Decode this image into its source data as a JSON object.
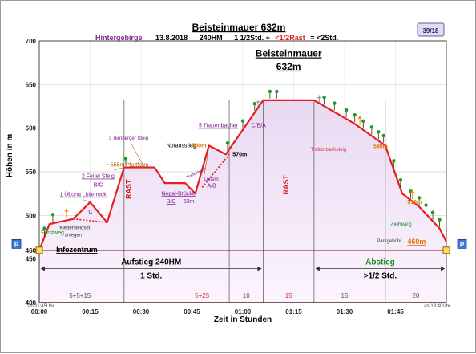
{
  "chart_data": {
    "type": "area",
    "title": "Beisteinmauer 632m",
    "subtitle": {
      "region": "Hintergebirge",
      "date": "13.8.2018",
      "elevation_gain": "240HM",
      "time_prefix": "1 1/2Std. +",
      "time_rest": "<1/2Rast",
      "time_total": "= <2Std."
    },
    "page_badge": "39/18",
    "xlabel": "Zeit in Stunden",
    "ylabel": "Höhen in m",
    "ylim": [
      400,
      700
    ],
    "xlim": [
      0,
      120
    ],
    "yticks": [
      400,
      450,
      500,
      550,
      600,
      650,
      700
    ],
    "yticks_extra": [
      460
    ],
    "xticks": [
      {
        "x": 0,
        "label": "00:00"
      },
      {
        "x": 15,
        "label": "00:15"
      },
      {
        "x": 30,
        "label": "00:30"
      },
      {
        "x": 45,
        "label": "00:45"
      },
      {
        "x": 60,
        "label": "01:00"
      },
      {
        "x": 75,
        "label": "01:15"
      },
      {
        "x": 90,
        "label": "01:30"
      },
      {
        "x": 105,
        "label": "01:45"
      }
    ],
    "start_time_label": "ab 11:45Uhr",
    "end_time_label": "an 13:40Uhr",
    "series": [
      {
        "color": "#e32020",
        "points": [
          [
            0,
            460
          ],
          [
            3,
            490
          ],
          [
            10,
            496
          ],
          [
            15,
            515
          ],
          [
            20,
            492
          ],
          [
            25,
            555
          ],
          [
            34,
            555
          ],
          [
            37,
            537
          ],
          [
            43,
            537
          ],
          [
            46,
            525
          ],
          [
            50,
            580
          ],
          [
            55,
            570
          ],
          [
            66,
            632
          ],
          [
            81,
            632
          ],
          [
            93,
            605
          ],
          [
            102,
            580
          ],
          [
            107,
            525
          ],
          [
            112,
            510
          ],
          [
            118,
            485
          ],
          [
            120,
            470
          ]
        ]
      },
      {
        "color": "#e32020",
        "dashed": true,
        "points": [
          [
            10,
            496
          ],
          [
            20,
            492
          ]
        ]
      },
      {
        "color": "#e32020",
        "dashed": true,
        "points": [
          [
            48,
            532
          ],
          [
            56,
            570
          ]
        ]
      }
    ],
    "segment_lines_x": [
      25,
      56,
      66,
      81,
      102
    ],
    "segment_labels": [
      {
        "x": 12,
        "label": "5+5+15",
        "color": "#555555"
      },
      {
        "x": 48,
        "label": "5+25",
        "color": "#cc3333"
      },
      {
        "x": 61,
        "label": "10",
        "color": "#555555"
      },
      {
        "x": 73.5,
        "label": "15",
        "color": "#cc3333"
      },
      {
        "x": 90,
        "label": "15",
        "color": "#555555"
      },
      {
        "x": 111,
        "label": "20",
        "color": "#555555"
      }
    ],
    "phases": [
      {
        "label": "Aufstieg 240HM",
        "sub": "1 Std.",
        "from": 0,
        "to": 66,
        "color": "#000000"
      },
      {
        "label": "Abstieg",
        "sub": ">1/2 Std.",
        "from": 81,
        "to": 120,
        "color": "#1a8a1a"
      }
    ],
    "rast_labels": [
      {
        "x": 27,
        "y": 530,
        "label": "RAST"
      },
      {
        "x": 73.5,
        "y": 535,
        "label": "RAST"
      }
    ],
    "annotations": [
      {
        "x": 0.5,
        "y": 478,
        "label": "Forstweg",
        "color": "#1a8a1a",
        "size": 7
      },
      {
        "x": 5,
        "y": 458,
        "label": "Infozentrum",
        "color": "#000000",
        "size": 9,
        "bold": true,
        "underline": true
      },
      {
        "x": 6,
        "y": 522,
        "label": "1 Übung Little rock",
        "color": "#7a1a8a",
        "size": 7,
        "underline": true
      },
      {
        "x": 14.5,
        "y": 502,
        "label": "C",
        "color": "#7a1a8a",
        "size": 7
      },
      {
        "x": 6,
        "y": 484,
        "label": "Klettersteigset",
        "color": "#333333",
        "size": 6
      },
      {
        "x": 7.5,
        "y": 476,
        "label": "anlegen",
        "color": "#333333",
        "size": 6
      },
      {
        "x": 12.5,
        "y": 543,
        "label": "2 Feitel Steig",
        "color": "#7a1a8a",
        "size": 7,
        "underline": true
      },
      {
        "x": 16,
        "y": 533,
        "label": "B/C",
        "color": "#7a1a8a",
        "size": 7
      },
      {
        "x": 20,
        "y": 556,
        "label": "~555m Plattform",
        "color": "#b35f00",
        "size": 7
      },
      {
        "x": 20.5,
        "y": 587,
        "label": "3 Ternberger Steig",
        "color": "#7a1a8a",
        "size": 6
      },
      {
        "x": 36,
        "y": 523,
        "label": "Nepal-Brücke",
        "color": "#7a1a8a",
        "size": 7,
        "underline": true
      },
      {
        "x": 37.5,
        "y": 514,
        "label": "B/C",
        "color": "#7a1a8a",
        "size": 7,
        "underline": true
      },
      {
        "x": 42.5,
        "y": 514,
        "label": "63m",
        "color": "#7a1a8a",
        "size": 7
      },
      {
        "x": 43.5,
        "y": 542,
        "label": "Trattenbach",
        "color": "#7a1a8a",
        "size": 5,
        "rotate": -25
      },
      {
        "x": 48.5,
        "y": 540,
        "label": "Leitern",
        "color": "#7a1a8a",
        "size": 6
      },
      {
        "x": 49.5,
        "y": 532,
        "label": "A/B",
        "color": "#7a1a8a",
        "size": 7
      },
      {
        "x": 37.5,
        "y": 578,
        "label": "Notausstieg",
        "color": "#000000",
        "size": 7
      },
      {
        "x": 45,
        "y": 578,
        "label": "580m",
        "color": "#e07800",
        "size": 7,
        "bold": true
      },
      {
        "x": 57,
        "y": 568,
        "label": "570m",
        "color": "#000000",
        "size": 7,
        "bold": true
      },
      {
        "x": 47,
        "y": 601,
        "label": "5 Trattenbacher",
        "color": "#7a1a8a",
        "size": 7,
        "underline": true
      },
      {
        "x": 62.5,
        "y": 601,
        "label": "C/B/A",
        "color": "#7a1a8a",
        "size": 7
      },
      {
        "x": 80,
        "y": 574,
        "label": "Trattenbachsteig",
        "color": "#cc3333",
        "size": 6
      },
      {
        "x": 98.5,
        "y": 577,
        "label": "580m",
        "color": "#e07800",
        "size": 7,
        "bold": true
      },
      {
        "x": 108.5,
        "y": 513,
        "label": "510m",
        "color": "#e07800",
        "size": 7,
        "bold": true
      },
      {
        "x": 103.5,
        "y": 488,
        "label": "Ziehweg",
        "color": "#1a8a1a",
        "size": 7
      },
      {
        "x": 99.5,
        "y": 469,
        "label": "Parkgebühr",
        "color": "#333333",
        "size": 6
      },
      {
        "x": 108.5,
        "y": 467,
        "label": "460m",
        "color": "#e07800",
        "size": 9,
        "bold": true,
        "underline": true
      }
    ],
    "summit_label": {
      "x": 73.5,
      "line1": "Beisteinmauer",
      "line2": "632m"
    },
    "parking_label": "P",
    "trees_x": [
      1.5,
      4,
      25.5,
      55.5,
      60,
      63.5,
      68,
      70,
      84,
      87,
      90.5,
      93,
      95.5,
      98,
      100,
      101.5,
      104.5,
      106.5,
      109.5,
      112,
      114,
      116,
      118
    ],
    "orange_arrows_x": [
      8,
      94.5,
      110
    ],
    "gray_crosses_x": [
      64.5,
      82.5
    ]
  }
}
